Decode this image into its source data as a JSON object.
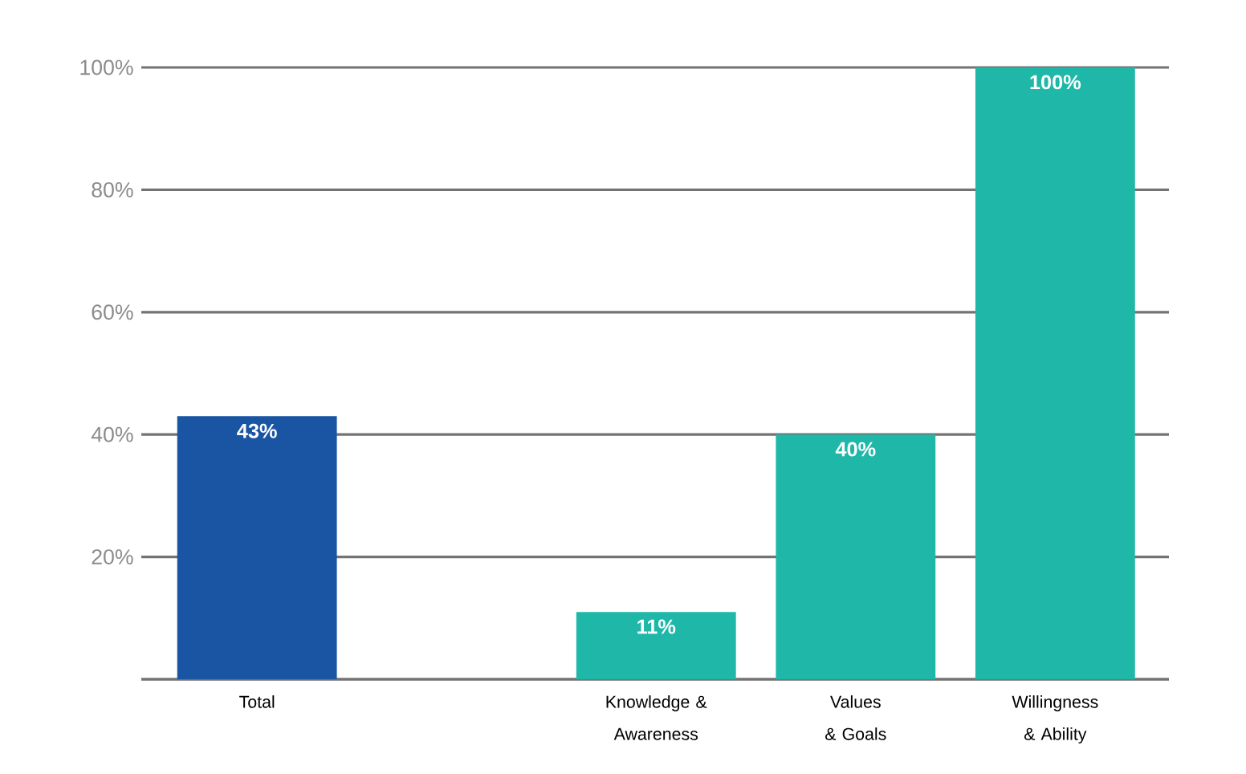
{
  "chart_data": {
    "type": "bar",
    "categories": [
      "Total",
      null,
      "Knowledge & Awareness",
      "Values & Goals",
      "Willingness & Ability"
    ],
    "values": [
      43,
      null,
      11,
      40,
      100
    ],
    "colors": [
      "#1a55a3",
      null,
      "#1fb8a8",
      "#1fb8a8",
      "#1fb8a8"
    ],
    "value_labels": [
      "43%",
      null,
      "11%",
      "40%",
      "100%"
    ],
    "ylim": [
      0,
      100
    ],
    "yticks": [
      {
        "value": 0,
        "label": null
      },
      {
        "value": 20,
        "label": "20%"
      },
      {
        "value": 40,
        "label": "40%"
      },
      {
        "value": 60,
        "label": "60%"
      },
      {
        "value": 80,
        "label": "80%"
      },
      {
        "value": 100,
        "label": "100%"
      }
    ],
    "grid": "y"
  }
}
